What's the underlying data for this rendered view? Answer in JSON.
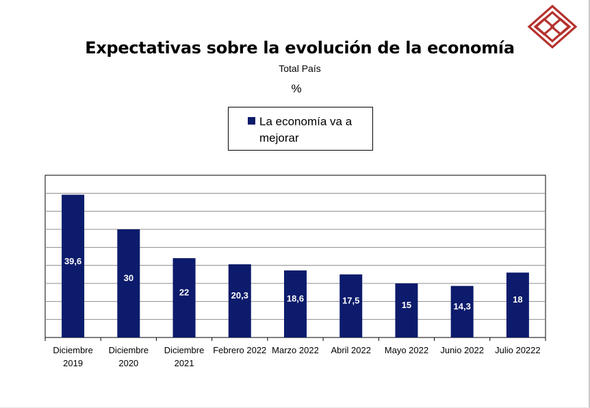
{
  "colors": {
    "bar": "#0c1b6b",
    "grid": "#8c8c8c",
    "axis": "#000000",
    "logo": "#b5322e",
    "bar_label": "#ffffff"
  },
  "logo_icon": "red-interlocking-diamonds-logo",
  "chart_data": {
    "type": "bar",
    "title": "Expectativas sobre la evolución de la economía",
    "subtitle": "Total País",
    "unit": "%",
    "legend_position": "top-center",
    "grid": true,
    "categories": [
      [
        "Diciembre",
        "2019"
      ],
      [
        "Diciembre",
        "2020"
      ],
      [
        "Diciembre",
        "2021"
      ],
      [
        "Febrero 2022"
      ],
      [
        "Marzo 2022"
      ],
      [
        "Abril 2022"
      ],
      [
        "Mayo 2022"
      ],
      [
        "Junio 2022"
      ],
      [
        "Julio 20222"
      ]
    ],
    "series": [
      {
        "name": "La economía va a mejorar",
        "values": [
          39.6,
          30,
          22,
          20.3,
          18.6,
          17.5,
          15,
          14.3,
          18
        ],
        "labels": [
          "39,6",
          "30",
          "22",
          "20,3",
          "18,6",
          "17,5",
          "15",
          "14,3",
          "18"
        ]
      }
    ],
    "ylim": [
      0,
      40
    ]
  }
}
